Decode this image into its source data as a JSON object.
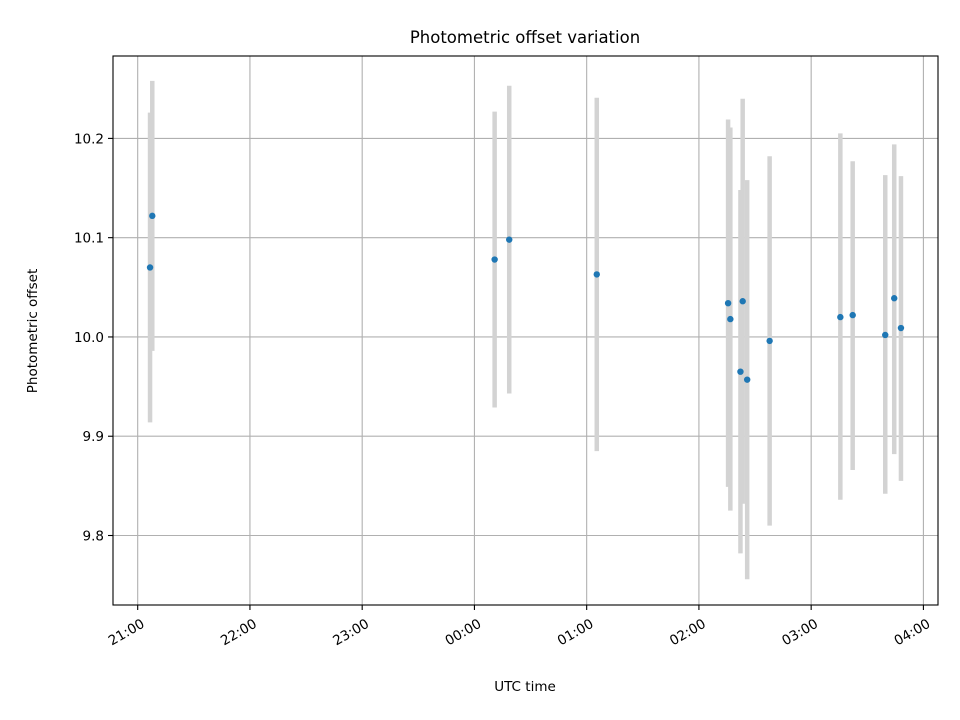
{
  "chart_data": {
    "type": "scatter",
    "title": "Photometric offset variation",
    "xlabel": "UTC time",
    "ylabel": "Photometric offset",
    "x_unit": "hours (21:00 = 21, next day 04:00 = 28)",
    "xlim": [
      20.78,
      28.13
    ],
    "ylim": [
      9.73,
      10.283
    ],
    "xticks": [
      {
        "v": 21,
        "label": "21:00"
      },
      {
        "v": 22,
        "label": "22:00"
      },
      {
        "v": 23,
        "label": "23:00"
      },
      {
        "v": 24,
        "label": "00:00"
      },
      {
        "v": 25,
        "label": "01:00"
      },
      {
        "v": 26,
        "label": "02:00"
      },
      {
        "v": 27,
        "label": "03:00"
      },
      {
        "v": 28,
        "label": "04:00"
      }
    ],
    "yticks": [
      {
        "v": 9.8,
        "label": "9.8"
      },
      {
        "v": 9.9,
        "label": "9.9"
      },
      {
        "v": 10.0,
        "label": "10.0"
      },
      {
        "v": 10.1,
        "label": "10.1"
      },
      {
        "v": 10.2,
        "label": "10.2"
      }
    ],
    "grid": true,
    "colors": {
      "point": "#1f77b4",
      "errorbar": "#d3d3d3"
    },
    "points": [
      {
        "x": 21.11,
        "y": 10.07,
        "lo": 9.914,
        "hi": 10.226
      },
      {
        "x": 21.13,
        "y": 10.122,
        "lo": 9.986,
        "hi": 10.258
      },
      {
        "x": 24.18,
        "y": 10.078,
        "lo": 9.929,
        "hi": 10.227
      },
      {
        "x": 24.31,
        "y": 10.098,
        "lo": 9.943,
        "hi": 10.253
      },
      {
        "x": 25.09,
        "y": 10.063,
        "lo": 9.885,
        "hi": 10.241
      },
      {
        "x": 26.26,
        "y": 10.034,
        "lo": 9.849,
        "hi": 10.219
      },
      {
        "x": 26.28,
        "y": 10.018,
        "lo": 9.825,
        "hi": 10.211
      },
      {
        "x": 26.37,
        "y": 9.965,
        "lo": 9.782,
        "hi": 10.148
      },
      {
        "x": 26.39,
        "y": 10.036,
        "lo": 9.832,
        "hi": 10.24
      },
      {
        "x": 26.43,
        "y": 9.957,
        "lo": 9.756,
        "hi": 10.158
      },
      {
        "x": 26.63,
        "y": 9.996,
        "lo": 9.81,
        "hi": 10.182
      },
      {
        "x": 27.26,
        "y": 10.02,
        "lo": 9.836,
        "hi": 10.205
      },
      {
        "x": 27.37,
        "y": 10.022,
        "lo": 9.866,
        "hi": 10.177
      },
      {
        "x": 27.66,
        "y": 10.002,
        "lo": 9.842,
        "hi": 10.163
      },
      {
        "x": 27.74,
        "y": 10.039,
        "lo": 9.882,
        "hi": 10.194
      },
      {
        "x": 27.8,
        "y": 10.009,
        "lo": 9.855,
        "hi": 10.162
      }
    ]
  }
}
